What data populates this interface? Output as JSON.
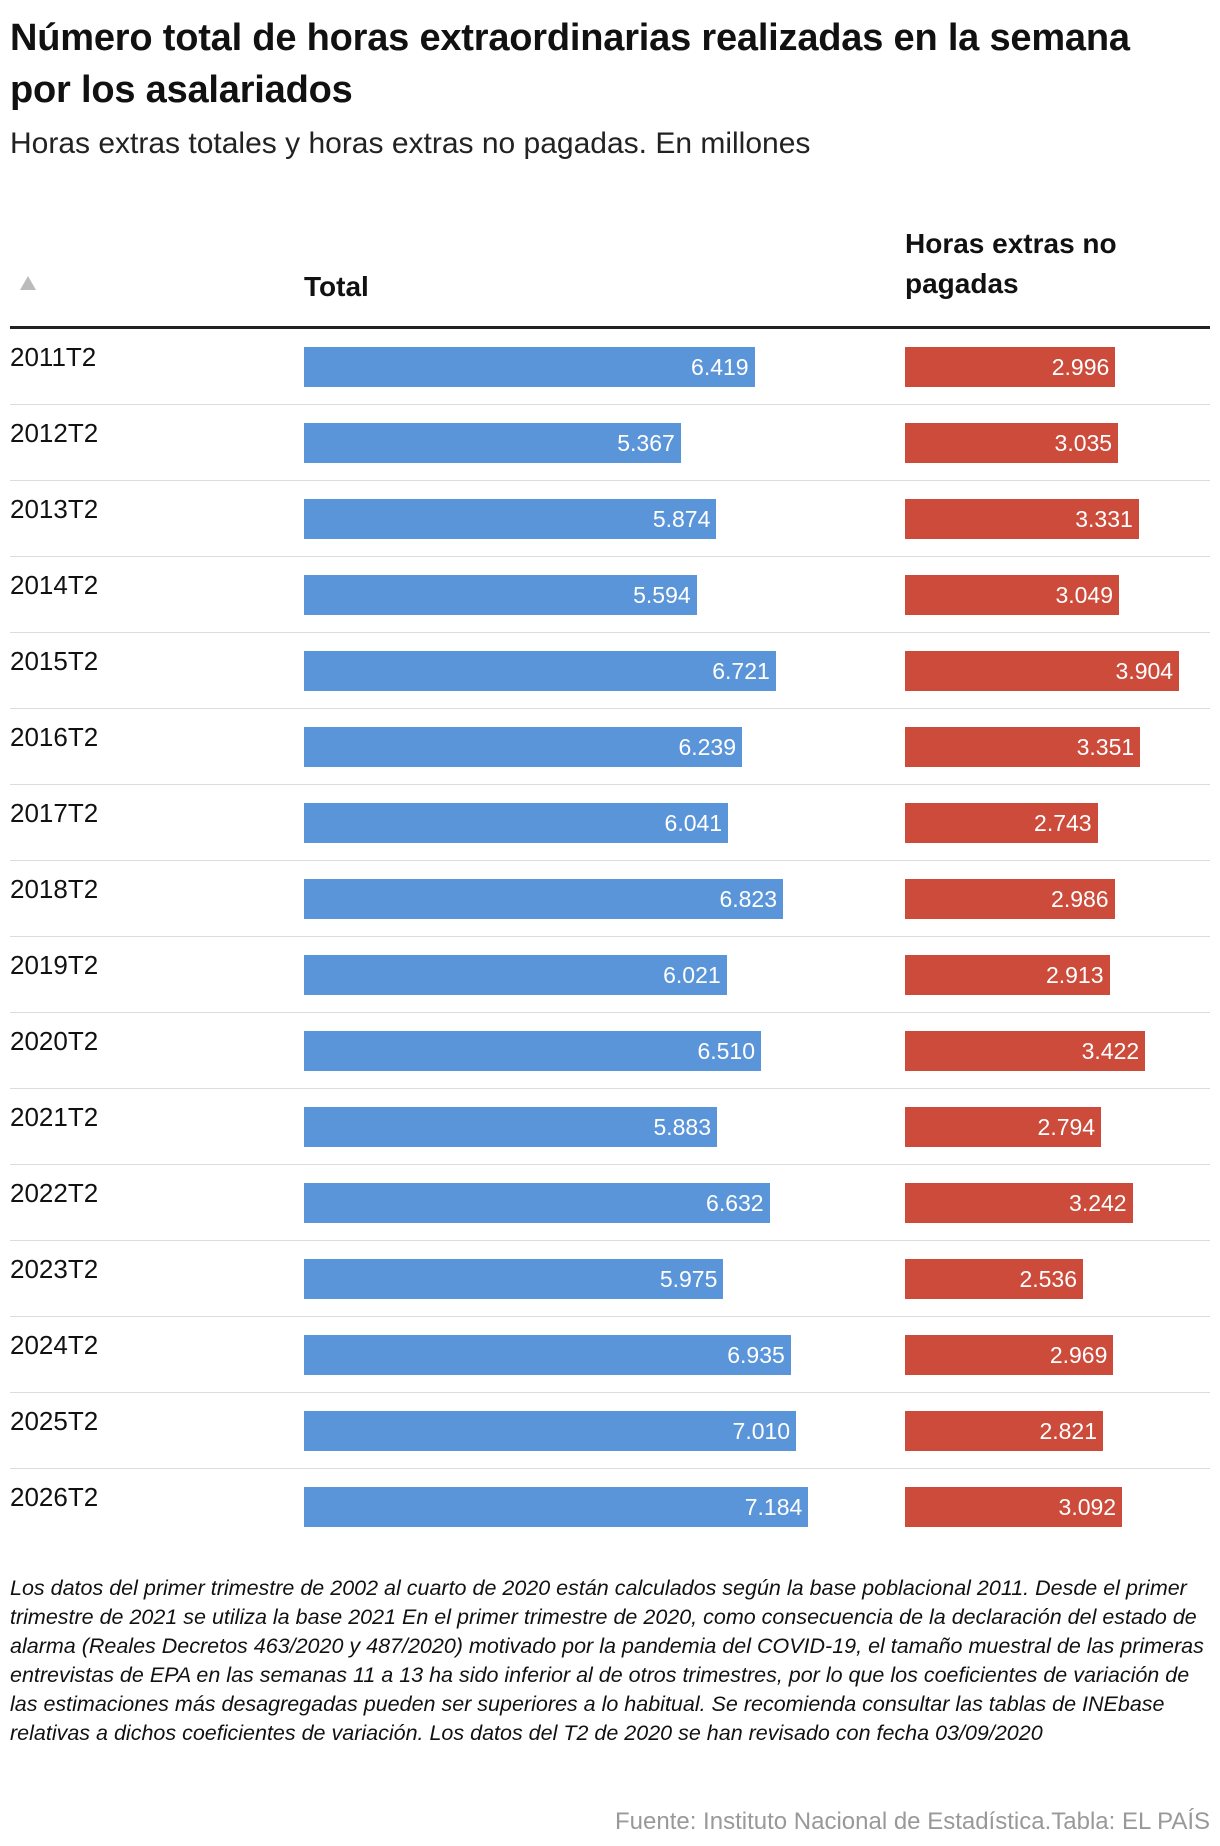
{
  "title": "Número total de horas extraordinarias realizadas en la semana por los asalariados",
  "subtitle": "Horas extras totales y horas extras no pagadas. En millones",
  "columns": {
    "total": "Total",
    "unpaid": "Horas extras no pagadas"
  },
  "chart_data": {
    "type": "table",
    "title": "Número total de horas extraordinarias realizadas en la semana por los asalariados",
    "subtitle": "Horas extras totales y horas extras no pagadas. En millones",
    "categories": [
      "2011T2",
      "2012T2",
      "2013T2",
      "2014T2",
      "2015T2",
      "2016T2",
      "2017T2",
      "2018T2",
      "2019T2",
      "2020T2",
      "2021T2",
      "2022T2",
      "2023T2",
      "2024T2",
      "2025T2",
      "2026T2"
    ],
    "series": [
      {
        "name": "Total",
        "color": "#5b95d9",
        "values": [
          6.419,
          5.367,
          5.874,
          5.594,
          6.721,
          6.239,
          6.041,
          6.823,
          6.021,
          6.51,
          5.883,
          6.632,
          5.975,
          6.935,
          7.01,
          7.184
        ],
        "labels": [
          "6.419",
          "5.367",
          "5.874",
          "5.594",
          "6.721",
          "6.239",
          "6.041",
          "6.823",
          "6.021",
          "6.510",
          "5.883",
          "6.632",
          "5.975",
          "6.935",
          "7.010",
          "7.184"
        ]
      },
      {
        "name": "Horas extras no pagadas",
        "color": "#cc4b3b",
        "values": [
          2.996,
          3.035,
          3.331,
          3.049,
          3.904,
          3.351,
          2.743,
          2.986,
          2.913,
          3.422,
          2.794,
          3.242,
          2.536,
          2.969,
          2.821,
          3.092
        ],
        "labels": [
          "2.996",
          "3.035",
          "3.331",
          "3.049",
          "3.904",
          "3.351",
          "2.743",
          "2.986",
          "2.913",
          "3.422",
          "2.794",
          "3.242",
          "2.536",
          "2.969",
          "2.821",
          "3.092"
        ]
      }
    ]
  },
  "note": "Los datos del primer trimestre de 2002 al cuarto de 2020 están calculados según la base poblacional 2011. Desde el primer trimestre de 2021 se utiliza la base 2021 En el primer trimestre de 2020, como consecuencia de la declaración del estado de alarma (Reales Decretos 463/2020 y 487/2020) motivado por la pandemia del COVID-19, el tamaño muestral de las primeras entrevistas de EPA en las semanas 11 a 13 ha sido inferior al de otros trimestres, por lo que los coeficientes de variación de las estimaciones más desagregadas pueden ser superiores a lo habitual. Se recomienda consultar las tablas de INEbase relativas a dichos coeficientes de variación. Los datos del T2 de 2020 se han revisado con fecha 03/09/2020",
  "source": "Fuente: Instituto Nacional de Estadística.Tabla: EL PAÍS"
}
